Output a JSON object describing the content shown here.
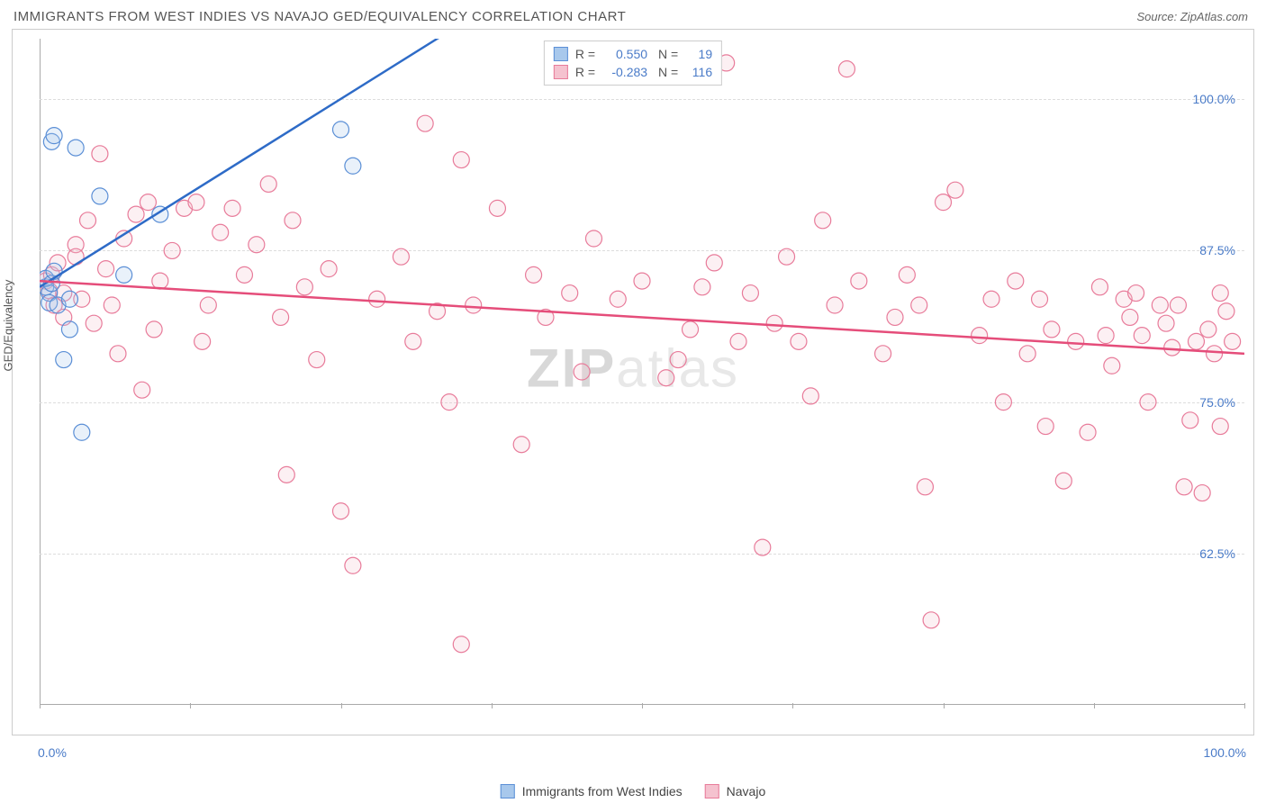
{
  "header": {
    "title": "IMMIGRANTS FROM WEST INDIES VS NAVAJO GED/EQUIVALENCY CORRELATION CHART",
    "source": "Source: ZipAtlas.com"
  },
  "chart": {
    "type": "scatter",
    "ylabel": "GED/Equivalency",
    "background_color": "#ffffff",
    "grid_color": "#dddddd",
    "border_color": "#cccccc",
    "axis_color": "#aaaaaa",
    "xlim": [
      0,
      100
    ],
    "ylim": [
      50,
      105
    ],
    "y_ticks": [
      62.5,
      75.0,
      87.5,
      100.0
    ],
    "y_tick_labels": [
      "62.5%",
      "75.0%",
      "87.5%",
      "100.0%"
    ],
    "x_tick_labels": {
      "left": "0.0%",
      "right": "100.0%"
    },
    "x_tick_positions": [
      0,
      12.5,
      25,
      37.5,
      50,
      62.5,
      75,
      87.5,
      100
    ],
    "tick_label_color": "#4a7bc8",
    "marker_radius": 9,
    "marker_fill_opacity": 0.25,
    "marker_stroke_width": 1.2,
    "trendline_width": 2.5,
    "watermark": "ZIPatlas",
    "series": [
      {
        "name": "Immigrants from West Indies",
        "color_fill": "#a8c8ec",
        "color_stroke": "#5b8fd6",
        "trendline_color": "#2e6bc7",
        "R": "0.550",
        "N": "19",
        "trendline": {
          "x1": 0,
          "y1": 84.5,
          "x2": 33,
          "y2": 105,
          "dash_to_x": 40
        },
        "points": [
          [
            0.5,
            84.5
          ],
          [
            0.5,
            85.2
          ],
          [
            0.8,
            84.0
          ],
          [
            0.8,
            83.2
          ],
          [
            1.0,
            84.8
          ],
          [
            1.2,
            85.8
          ],
          [
            1.5,
            83.0
          ],
          [
            1.0,
            96.5
          ],
          [
            1.2,
            97.0
          ],
          [
            2.5,
            83.5
          ],
          [
            3.0,
            96.0
          ],
          [
            2.0,
            78.5
          ],
          [
            2.5,
            81.0
          ],
          [
            3.5,
            72.5
          ],
          [
            5.0,
            92.0
          ],
          [
            7.0,
            85.5
          ],
          [
            10.0,
            90.5
          ],
          [
            25.0,
            97.5
          ],
          [
            26.0,
            94.5
          ]
        ]
      },
      {
        "name": "Navajo",
        "color_fill": "#f5c2cf",
        "color_stroke": "#e87b9a",
        "trendline_color": "#e54d7a",
        "R": "-0.283",
        "N": "116",
        "trendline": {
          "x1": 0,
          "y1": 85.0,
          "x2": 100,
          "y2": 79.0
        },
        "points": [
          [
            0.5,
            85.0
          ],
          [
            0.8,
            84.2
          ],
          [
            1.0,
            85.5
          ],
          [
            1.2,
            83.0
          ],
          [
            1.5,
            86.5
          ],
          [
            2.0,
            84.0
          ],
          [
            2.0,
            82.0
          ],
          [
            3.0,
            88.0
          ],
          [
            3.0,
            87.0
          ],
          [
            3.5,
            83.5
          ],
          [
            4.0,
            90.0
          ],
          [
            4.5,
            81.5
          ],
          [
            5.0,
            95.5
          ],
          [
            5.5,
            86.0
          ],
          [
            6.0,
            83.0
          ],
          [
            6.5,
            79.0
          ],
          [
            7.0,
            88.5
          ],
          [
            8.0,
            90.5
          ],
          [
            8.5,
            76.0
          ],
          [
            9.0,
            91.5
          ],
          [
            9.5,
            81.0
          ],
          [
            10.0,
            85.0
          ],
          [
            11.0,
            87.5
          ],
          [
            12.0,
            91.0
          ],
          [
            13.0,
            91.5
          ],
          [
            13.5,
            80.0
          ],
          [
            14.0,
            83.0
          ],
          [
            15.0,
            89.0
          ],
          [
            16.0,
            91.0
          ],
          [
            17.0,
            85.5
          ],
          [
            18.0,
            88.0
          ],
          [
            19.0,
            93.0
          ],
          [
            20.0,
            82.0
          ],
          [
            20.5,
            69.0
          ],
          [
            21.0,
            90.0
          ],
          [
            22.0,
            84.5
          ],
          [
            23.0,
            78.5
          ],
          [
            24.0,
            86.0
          ],
          [
            25.0,
            66.0
          ],
          [
            26.0,
            61.5
          ],
          [
            28.0,
            83.5
          ],
          [
            30.0,
            87.0
          ],
          [
            31.0,
            80.0
          ],
          [
            32.0,
            98.0
          ],
          [
            33.0,
            82.5
          ],
          [
            34.0,
            75.0
          ],
          [
            35.0,
            95.0
          ],
          [
            35.0,
            55.0
          ],
          [
            36.0,
            83.0
          ],
          [
            38.0,
            91.0
          ],
          [
            40.0,
            71.5
          ],
          [
            41.0,
            85.5
          ],
          [
            42.0,
            82.0
          ],
          [
            44.0,
            84.0
          ],
          [
            45.0,
            77.5
          ],
          [
            46.0,
            88.5
          ],
          [
            48.0,
            83.5
          ],
          [
            50.0,
            85.0
          ],
          [
            50.0,
            103.0
          ],
          [
            52.0,
            77.0
          ],
          [
            53.0,
            78.5
          ],
          [
            54.0,
            81.0
          ],
          [
            55.0,
            84.5
          ],
          [
            56.0,
            86.5
          ],
          [
            57.0,
            103.0
          ],
          [
            58.0,
            80.0
          ],
          [
            59.0,
            84.0
          ],
          [
            60.0,
            63.0
          ],
          [
            61.0,
            81.5
          ],
          [
            62.0,
            87.0
          ],
          [
            63.0,
            80.0
          ],
          [
            64.0,
            75.5
          ],
          [
            65.0,
            90.0
          ],
          [
            66.0,
            83.0
          ],
          [
            67.0,
            102.5
          ],
          [
            68.0,
            85.0
          ],
          [
            70.0,
            79.0
          ],
          [
            71.0,
            82.0
          ],
          [
            72.0,
            85.5
          ],
          [
            73.0,
            83.0
          ],
          [
            73.5,
            68.0
          ],
          [
            74.0,
            57.0
          ],
          [
            75.0,
            91.5
          ],
          [
            76.0,
            92.5
          ],
          [
            78.0,
            80.5
          ],
          [
            79.0,
            83.5
          ],
          [
            80.0,
            75.0
          ],
          [
            81.0,
            85.0
          ],
          [
            82.0,
            79.0
          ],
          [
            83.0,
            83.5
          ],
          [
            83.5,
            73.0
          ],
          [
            84.0,
            81.0
          ],
          [
            85.0,
            68.5
          ],
          [
            86.0,
            80.0
          ],
          [
            87.0,
            72.5
          ],
          [
            88.0,
            84.5
          ],
          [
            88.5,
            80.5
          ],
          [
            89.0,
            78.0
          ],
          [
            90.0,
            83.5
          ],
          [
            90.5,
            82.0
          ],
          [
            91.0,
            84.0
          ],
          [
            91.5,
            80.5
          ],
          [
            92.0,
            75.0
          ],
          [
            93.0,
            83.0
          ],
          [
            93.5,
            81.5
          ],
          [
            94.0,
            79.5
          ],
          [
            94.5,
            83.0
          ],
          [
            95.0,
            68.0
          ],
          [
            95.5,
            73.5
          ],
          [
            96.0,
            80.0
          ],
          [
            96.5,
            67.5
          ],
          [
            97.0,
            81.0
          ],
          [
            97.5,
            79.0
          ],
          [
            98.0,
            73.0
          ],
          [
            98.0,
            84.0
          ],
          [
            98.5,
            82.5
          ],
          [
            99.0,
            80.0
          ]
        ]
      }
    ]
  },
  "legend_bottom": [
    {
      "swatch_fill": "#a8c8ec",
      "swatch_stroke": "#5b8fd6",
      "label": "Immigrants from West Indies"
    },
    {
      "swatch_fill": "#f5c2cf",
      "swatch_stroke": "#e87b9a",
      "label": "Navajo"
    }
  ]
}
